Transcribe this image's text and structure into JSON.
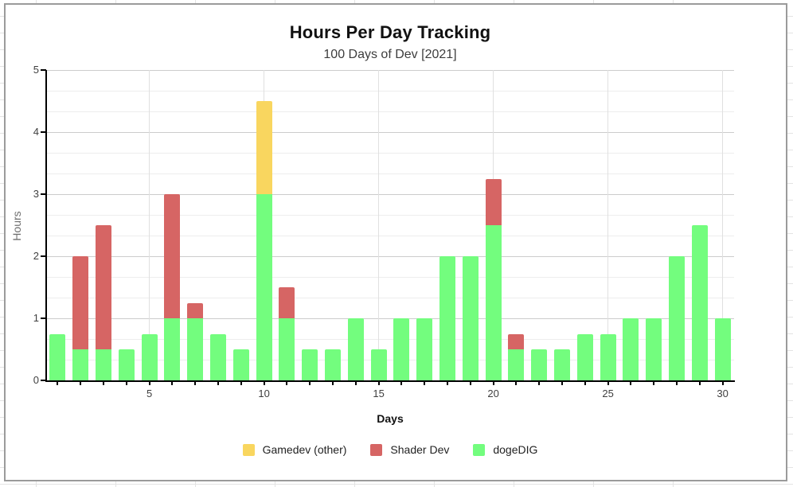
{
  "page": {
    "card_border_color": "#9b9b9b",
    "card_background": "#ffffff",
    "sheet_gridline_color": "#e3e3e3"
  },
  "chart_data": {
    "type": "bar",
    "stacked": true,
    "title": "Hours Per Day Tracking",
    "subtitle": "100 Days of Dev [2021]",
    "xlabel": "Days",
    "ylabel": "Hours",
    "ylim": [
      0,
      5
    ],
    "y_ticks": [
      0,
      1,
      2,
      3,
      4,
      5
    ],
    "y_minor_gridlines_per_interval": 2,
    "x_days": [
      1,
      2,
      3,
      4,
      5,
      6,
      7,
      8,
      9,
      10,
      11,
      12,
      13,
      14,
      15,
      16,
      17,
      18,
      19,
      20,
      21,
      22,
      23,
      24,
      25,
      26,
      27,
      28,
      29,
      30
    ],
    "x_tick_labels": [
      5,
      10,
      15,
      20,
      25,
      30
    ],
    "grid": true,
    "legend_position": "bottom",
    "axis_color": "#000000",
    "major_gridline_color": "#cccccc",
    "minor_gridline_color": "#ededed",
    "vertical_gridline_color": "#e0e0e0",
    "series": [
      {
        "name": "Gamedev (other)",
        "color": "#F9D65F",
        "values": [
          0,
          0,
          0,
          0,
          0,
          0,
          0,
          0,
          0,
          1.5,
          0,
          0,
          0,
          0,
          0,
          0,
          0,
          0,
          0,
          0,
          0,
          0,
          0,
          0,
          0,
          0,
          0,
          0,
          0,
          0
        ]
      },
      {
        "name": "Shader Dev",
        "color": "#D66564",
        "values": [
          0,
          1.5,
          2,
          0,
          0,
          2,
          0.25,
          0,
          0,
          0,
          0.5,
          0,
          0,
          0,
          0,
          0,
          0,
          0,
          0,
          0.75,
          0.25,
          0,
          0,
          0,
          0,
          0,
          0,
          0,
          0,
          0
        ]
      },
      {
        "name": "dogeDIG",
        "color": "#73FD7E",
        "values": [
          0.75,
          0.5,
          0.5,
          0.5,
          0.75,
          1,
          1,
          0.75,
          0.5,
          3,
          1,
          0.5,
          0.5,
          1,
          0.5,
          1,
          1,
          2,
          2,
          2.5,
          0.5,
          0.5,
          0.5,
          0.75,
          0.75,
          1,
          1,
          2,
          2.5,
          1
        ]
      }
    ]
  }
}
